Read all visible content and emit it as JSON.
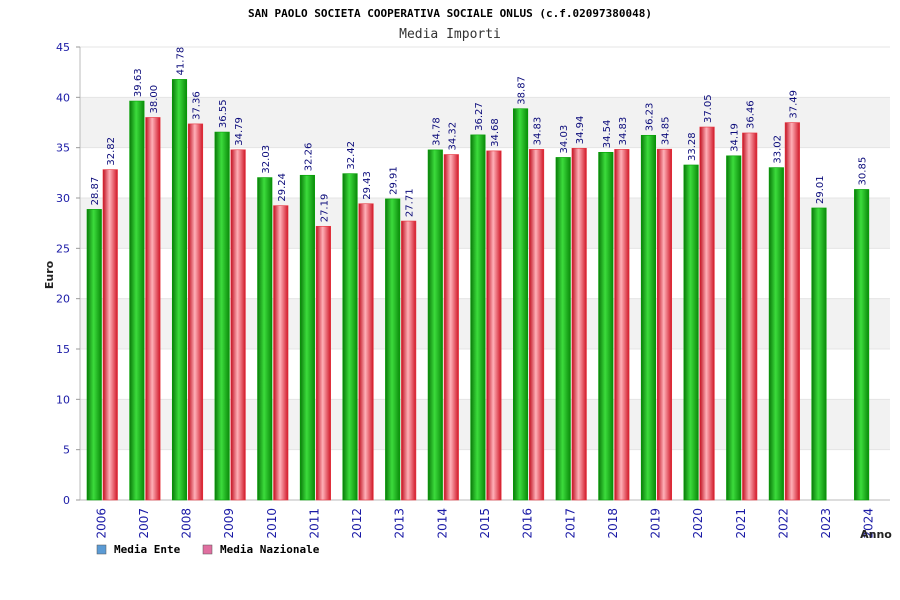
{
  "colors": {
    "ente": "#00a000",
    "nazionale": "#e8323c",
    "legend_ente": "#5b9bd5",
    "legend_nazionale": "#e06fa0",
    "band": "#f2f2f2",
    "tick": "#1a1aa6"
  },
  "chart_data": {
    "type": "bar",
    "title": "SAN PAOLO SOCIETA COOPERATIVA SOCIALE ONLUS (c.f.02097380048)",
    "subtitle": "Media Importi",
    "xlabel": "Anno",
    "ylabel": "Euro",
    "ylim": [
      0,
      45
    ],
    "yticks": [
      0,
      5,
      10,
      15,
      20,
      25,
      30,
      35,
      40,
      45
    ],
    "categories": [
      "2006",
      "2007",
      "2008",
      "2009",
      "2010",
      "2011",
      "2012",
      "2013",
      "2014",
      "2015",
      "2016",
      "2017",
      "2018",
      "2019",
      "2020",
      "2021",
      "2022",
      "2023",
      "2024"
    ],
    "series": [
      {
        "name": "Media Ente",
        "values": [
          28.87,
          39.63,
          41.78,
          36.55,
          32.03,
          32.26,
          32.42,
          29.91,
          34.78,
          36.27,
          38.87,
          34.03,
          34.54,
          36.23,
          33.28,
          34.19,
          33.02,
          29.01,
          30.85
        ],
        "labels": [
          "28.87",
          "39.63",
          "41.78",
          "36.55",
          "32.03",
          "32.26",
          "32.42",
          "29.91",
          "34.78",
          "36.27",
          "38.87",
          "34.03",
          "34.54",
          "36.23",
          "33.28",
          "34.19",
          "33.02",
          "29.01",
          "30.85"
        ]
      },
      {
        "name": "Media Nazionale",
        "values": [
          32.82,
          38.0,
          37.36,
          34.79,
          29.24,
          27.19,
          29.43,
          27.71,
          34.32,
          34.68,
          34.83,
          34.94,
          34.83,
          34.85,
          37.05,
          36.46,
          37.49,
          null,
          null
        ],
        "labels": [
          "32.82",
          "38.00",
          "37.36",
          "34.79",
          "29.24",
          "27.19",
          "29.43",
          "27.71",
          "34.32",
          "34.68",
          "34.83",
          "34.94",
          "34.83",
          "34.85",
          "37.05",
          "36.46",
          "37.49",
          "",
          ""
        ]
      }
    ],
    "grid": true,
    "legend": "bottom-left"
  }
}
